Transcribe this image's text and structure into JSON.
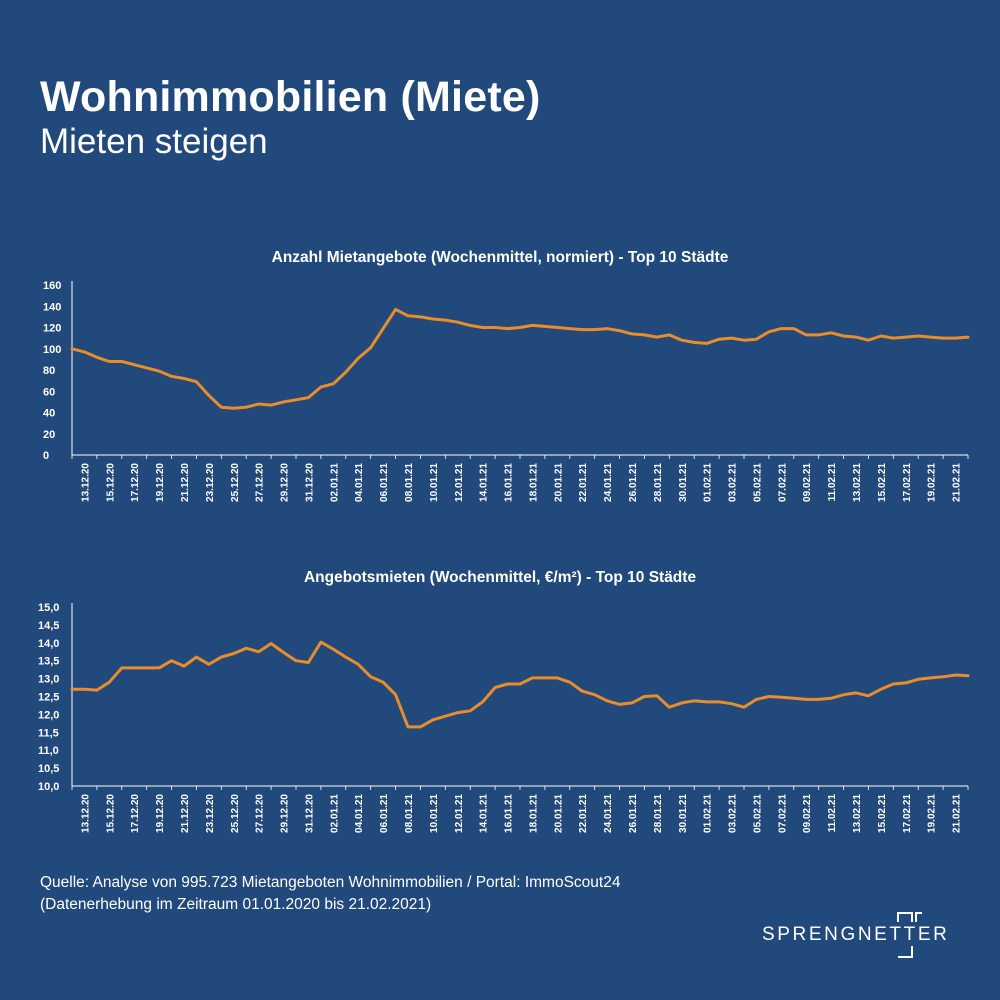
{
  "header": {
    "title": "Wohnimmobilien (Miete)",
    "subtitle": "Mieten steigen"
  },
  "source": {
    "line1": "Quelle: Analyse von 995.723 Mietangeboten Wohnimmobilien / Portal: ImmoScout24",
    "line2": "(Datenerhebung im Zeitraum 01.01.2020 bis  21.02.2021)"
  },
  "logo": {
    "text": "SPRENGNETTER"
  },
  "colors": {
    "background": "#21497c",
    "line": "#e88c2c",
    "text": "#ffffff"
  },
  "chart_data": [
    {
      "type": "line",
      "title": "Anzahl Mietangebote (Wochenmittel, normiert) - Top 10 Städte",
      "xlabel": "",
      "ylabel": "",
      "ylim": [
        0,
        160
      ],
      "yticks": [
        "0",
        "20",
        "40",
        "60",
        "80",
        "100",
        "120",
        "140",
        "160"
      ],
      "ytick_values": [
        0,
        20,
        40,
        60,
        80,
        100,
        120,
        140,
        160
      ],
      "xtick_labels": [
        "13.12.20",
        "15.12.20",
        "17.12.20",
        "19.12.20",
        "21.12.20",
        "23.12.20",
        "25.12.20",
        "27.12.20",
        "29.12.20",
        "31.12.20",
        "02.01.21",
        "04.01.21",
        "06.01.21",
        "08.01.21",
        "10.01.21",
        "12.01.21",
        "14.01.21",
        "16.01.21",
        "18.01.21",
        "20.01.21",
        "22.01.21",
        "24.01.21",
        "26.01.21",
        "28.01.21",
        "30.01.21",
        "01.02.21",
        "03.02.21",
        "05.02.21",
        "07.02.21",
        "09.02.21",
        "11.02.21",
        "13.02.21",
        "15.02.21",
        "17.02.21",
        "19.02.21",
        "21.02.21"
      ],
      "grid": false,
      "series": [
        {
          "values": [
            100,
            97,
            92,
            88,
            88,
            85,
            82,
            79,
            74,
            72,
            69,
            56,
            45,
            44,
            45,
            48,
            47,
            50,
            52,
            54,
            64,
            67,
            78,
            91,
            101,
            119,
            137,
            131,
            130,
            128,
            127,
            125,
            122,
            120,
            120,
            119,
            120,
            122,
            121,
            120,
            119,
            118,
            118,
            119,
            117,
            114,
            113,
            111,
            113,
            108,
            106,
            105,
            109,
            110,
            108,
            109,
            116,
            119,
            119,
            113,
            113,
            115,
            112,
            111,
            108,
            112,
            110,
            111,
            112,
            111,
            110,
            110,
            111
          ]
        }
      ]
    },
    {
      "type": "line",
      "title": "Angebotsmieten (Wochenmittel, €/m²) - Top 10 Städte",
      "xlabel": "",
      "ylabel": "",
      "ylim": [
        10.0,
        15.0
      ],
      "yticks": [
        "10,0",
        "10,5",
        "11,0",
        "11,5",
        "12,0",
        "12,5",
        "13,0",
        "13,5",
        "14,0",
        "14,5",
        "15,0"
      ],
      "ytick_values": [
        10.0,
        10.5,
        11.0,
        11.5,
        12.0,
        12.5,
        13.0,
        13.5,
        14.0,
        14.5,
        15.0
      ],
      "xtick_labels": [
        "13.12.20",
        "15.12.20",
        "17.12.20",
        "19.12.20",
        "21.12.20",
        "23.12.20",
        "25.12.20",
        "27.12.20",
        "29.12.20",
        "31.12.20",
        "02.01.21",
        "04.01.21",
        "06.01.21",
        "08.01.21",
        "10.01.21",
        "12.01.21",
        "14.01.21",
        "16.01.21",
        "18.01.21",
        "20.01.21",
        "22.01.21",
        "24.01.21",
        "26.01.21",
        "28.01.21",
        "30.01.21",
        "01.02.21",
        "03.02.21",
        "05.02.21",
        "07.02.21",
        "09.02.21",
        "11.02.21",
        "13.02.21",
        "15.02.21",
        "17.02.21",
        "19.02.21",
        "21.02.21"
      ],
      "grid": false,
      "series": [
        {
          "values": [
            12.7,
            12.7,
            12.68,
            12.9,
            13.3,
            13.3,
            13.3,
            13.3,
            13.5,
            13.35,
            13.6,
            13.4,
            13.6,
            13.7,
            13.85,
            13.75,
            13.98,
            13.73,
            13.5,
            13.45,
            14.02,
            13.82,
            13.6,
            13.4,
            13.05,
            12.9,
            12.55,
            11.65,
            11.65,
            11.85,
            11.95,
            12.05,
            12.1,
            12.35,
            12.75,
            12.85,
            12.85,
            13.02,
            13.02,
            13.02,
            12.9,
            12.65,
            12.55,
            12.38,
            12.28,
            12.32,
            12.5,
            12.52,
            12.2,
            12.32,
            12.38,
            12.35,
            12.35,
            12.3,
            12.2,
            12.42,
            12.5,
            12.48,
            12.45,
            12.42,
            12.42,
            12.45,
            12.55,
            12.6,
            12.52,
            12.7,
            12.85,
            12.88,
            12.98,
            13.02,
            13.05,
            13.1,
            13.08
          ]
        }
      ]
    }
  ]
}
